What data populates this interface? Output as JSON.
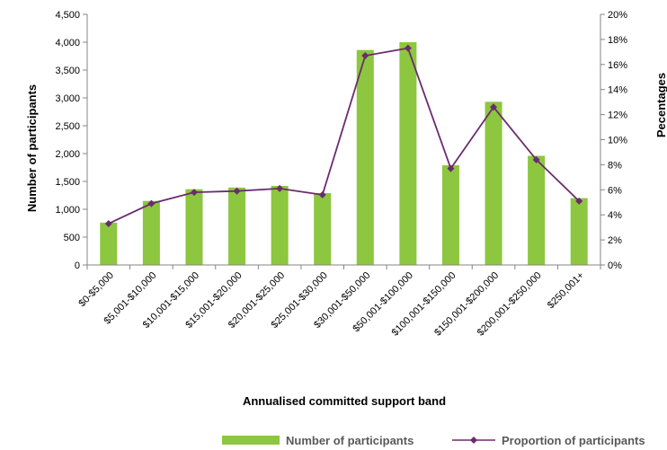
{
  "chart_data": {
    "type": "bar",
    "categories": [
      "$0-$5,000",
      "$5,001-$10,000",
      "$10,001-$15,000",
      "$15,001-$20,000",
      "$20,001-$25,000",
      "$25,001-$30,000",
      "$30,001-$50,000",
      "$50,001-$100,000",
      "$100,001-$150,000",
      "$150,001-$200,000",
      "$200,001-$250,000",
      "$250,001+"
    ],
    "series": [
      {
        "name": "Number of participants",
        "type": "bar",
        "axis": "left",
        "color": "#8dc63f",
        "values": [
          760,
          1150,
          1360,
          1390,
          1420,
          1290,
          3860,
          4000,
          1790,
          2930,
          1960,
          1200
        ]
      },
      {
        "name": "Proportion of participants",
        "type": "line",
        "axis": "right",
        "color": "#6b2c6e",
        "values": [
          3.3,
          4.9,
          5.8,
          5.9,
          6.1,
          5.6,
          16.7,
          17.3,
          7.7,
          12.6,
          8.4,
          5.1
        ]
      }
    ],
    "xlabel": "Annualised committed support band",
    "ylabel": "Number of participants",
    "y2label": "Pecentages",
    "ylim": [
      0,
      4500
    ],
    "y2lim": [
      0,
      20
    ],
    "yticks": [
      "0",
      "500",
      "1,000",
      "1,500",
      "2,000",
      "2,500",
      "3,000",
      "3,500",
      "4,000",
      "4,500"
    ],
    "y2ticks": [
      "0%",
      "2%",
      "4%",
      "6%",
      "8%",
      "10%",
      "12%",
      "14%",
      "16%",
      "18%",
      "20%"
    ],
    "grid": false,
    "legend": "bottom"
  }
}
